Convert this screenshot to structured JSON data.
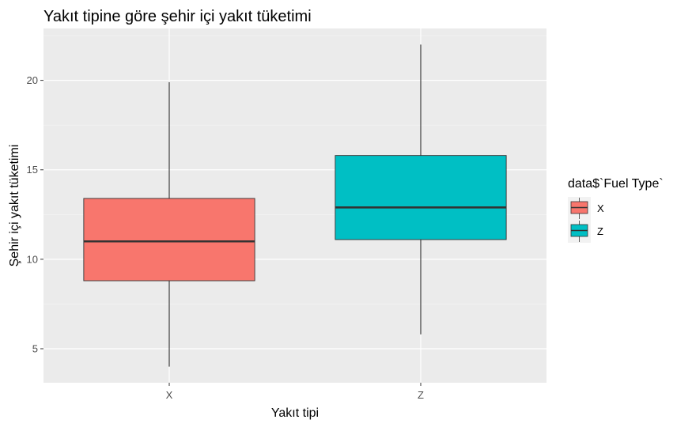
{
  "chart_data": {
    "type": "boxplot",
    "title": "Yakıt tipine göre şehir içi yakıt tüketimi",
    "xlabel": "Yakıt tipi",
    "ylabel": "Şehir içi yakıt tüketimi",
    "ylim": [
      3.1,
      22.9
    ],
    "yticks": [
      5,
      10,
      15,
      20
    ],
    "categories": [
      "X",
      "Z"
    ],
    "boxes": [
      {
        "category": "X",
        "min": 4.0,
        "q1": 8.8,
        "median": 11.0,
        "q3": 13.4,
        "max": 19.9,
        "color": "#F8766D"
      },
      {
        "category": "Z",
        "min": 5.8,
        "q1": 11.1,
        "median": 12.9,
        "q3": 15.8,
        "max": 22.0,
        "color": "#00BFC4"
      }
    ],
    "legend": {
      "title": "data$`Fuel Type`",
      "position": "right",
      "entries": [
        {
          "label": "X",
          "color": "#F8766D"
        },
        {
          "label": "Z",
          "color": "#00BFC4"
        }
      ]
    },
    "grid": true,
    "panel_background": "#EBEBEB"
  }
}
